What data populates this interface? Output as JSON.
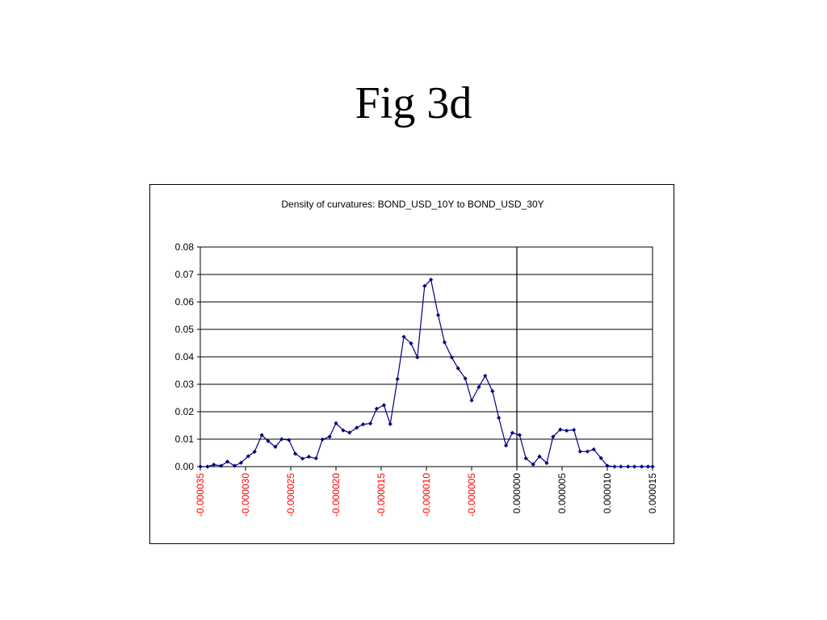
{
  "slide": {
    "title": "Fig 3d"
  },
  "chart_data": {
    "type": "line",
    "title": "Density of curvatures: BOND_USD_10Y   to BOND_USD_30Y",
    "xlabel": "",
    "ylabel": "",
    "xlim": [
      -3.5e-05,
      1.5e-05
    ],
    "ylim": [
      0,
      0.08
    ],
    "y_ticks": [
      "0.00",
      "0.01",
      "0.02",
      "0.03",
      "0.04",
      "0.05",
      "0.06",
      "0.07",
      "0.08"
    ],
    "y_tick_values": [
      0,
      0.01,
      0.02,
      0.03,
      0.04,
      0.05,
      0.06,
      0.07,
      0.08
    ],
    "x_ticks": [
      "-0.000035",
      "-0.000030",
      "-0.000025",
      "-0.000020",
      "-0.000015",
      "-0.000010",
      "-0.000005",
      "0.000000",
      "0.000005",
      "0.000010",
      "0.000015"
    ],
    "x_tick_values": [
      -3.5e-05,
      -3e-05,
      -2.5e-05,
      -2e-05,
      -1.5e-05,
      -1e-05,
      -5e-06,
      0,
      5e-06,
      1e-05,
      1.5e-05
    ],
    "negative_tick_color": "#ff0000",
    "positive_tick_color": "#000000",
    "line_color": "#000080",
    "grid": true,
    "vertical_reference_at": 0,
    "series": [
      {
        "x": [
          -3.5e-05,
          -3.42e-05,
          -3.35e-05,
          -3.27e-05,
          -3.2e-05,
          -3.12e-05,
          -3.05e-05,
          -2.97e-05,
          -2.9e-05,
          -2.82e-05,
          -2.75e-05,
          -2.67e-05,
          -2.6e-05,
          -2.52e-05,
          -2.45e-05,
          -2.37e-05,
          -2.3e-05,
          -2.22e-05,
          -2.15e-05,
          -2.07e-05,
          -2e-05,
          -1.92e-05,
          -1.85e-05,
          -1.77e-05,
          -1.7e-05,
          -1.62e-05,
          -1.55e-05,
          -1.47e-05,
          -1.4e-05,
          -1.32e-05,
          -1.25e-05,
          -1.17e-05,
          -1.1e-05,
          -1.02e-05,
          -9.5e-06,
          -8.7e-06,
          -8e-06,
          -7.2e-06,
          -6.5e-06,
          -5.7e-06,
          -5e-06,
          -4.2e-06,
          -3.5e-06,
          -2.7e-06,
          -2e-06,
          -1.2e-06,
          -5e-07,
          3e-07,
          1e-06,
          1.8e-06,
          2.5e-06,
          3.3e-06,
          4e-06,
          4.8e-06,
          5.5e-06,
          6.3e-06,
          7e-06,
          7.8e-06,
          8.5e-06,
          9.3e-06,
          1e-05,
          1.08e-05,
          1.15e-05,
          1.23e-05,
          1.3e-05,
          1.38e-05,
          1.45e-05,
          1.5e-05
        ],
        "values": [
          0.0,
          0.0,
          0.0007,
          0.0003,
          0.0018,
          0.0003,
          0.0014,
          0.0038,
          0.0054,
          0.0115,
          0.0093,
          0.0072,
          0.01,
          0.0097,
          0.0047,
          0.0029,
          0.0036,
          0.003,
          0.0099,
          0.0109,
          0.0158,
          0.0132,
          0.0124,
          0.0142,
          0.0154,
          0.0157,
          0.0211,
          0.0224,
          0.0155,
          0.0319,
          0.0473,
          0.0449,
          0.0398,
          0.0658,
          0.0681,
          0.0552,
          0.0453,
          0.0398,
          0.0358,
          0.0321,
          0.0241,
          0.029,
          0.0331,
          0.0275,
          0.0178,
          0.0077,
          0.0123,
          0.0115,
          0.003,
          0.0008,
          0.0037,
          0.0013,
          0.0109,
          0.0135,
          0.0131,
          0.0134,
          0.0055,
          0.0055,
          0.0063,
          0.0031,
          0.0003,
          0.0,
          0.0,
          0.0,
          0.0,
          0.0,
          0.0,
          0.0
        ]
      }
    ]
  }
}
